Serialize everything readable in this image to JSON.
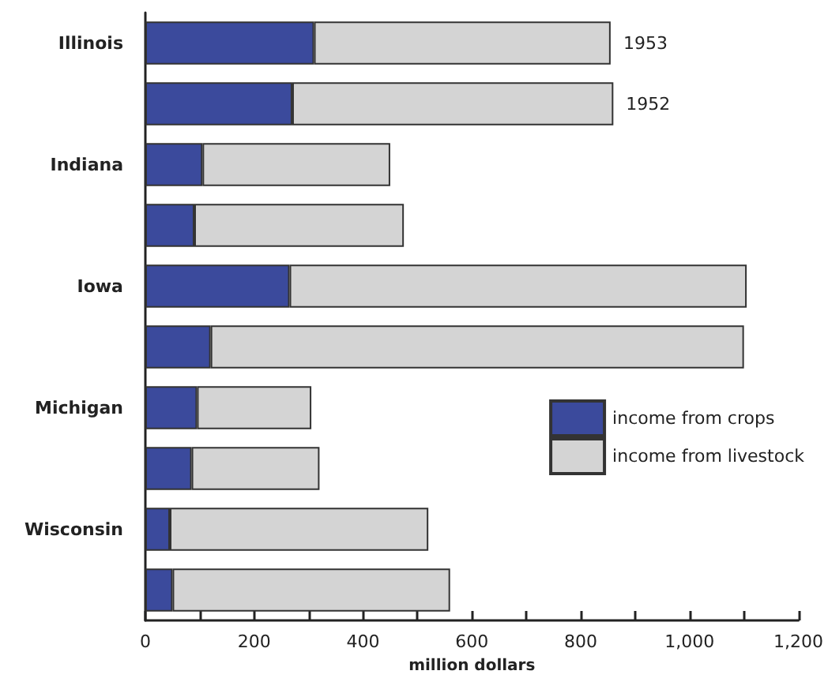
{
  "chart_data": {
    "type": "bar",
    "orientation": "horizontal",
    "stacked": true,
    "xlabel": "million dollars",
    "categories": [
      "Illinois",
      null,
      "Indiana",
      null,
      "Iowa",
      null,
      "Michigan",
      null,
      "Wisconsin",
      null
    ],
    "series": [
      {
        "name": "income from crops",
        "color": "#3b4a9c",
        "values": [
          310,
          270,
          105,
          90,
          265,
          120,
          95,
          85,
          45,
          50
        ]
      },
      {
        "name": "income from livestock",
        "color": "#d4d4d4",
        "values": [
          545,
          590,
          345,
          385,
          840,
          980,
          210,
          235,
          475,
          510
        ]
      }
    ],
    "annotations": [
      "1953",
      "1952"
    ],
    "xlim": [
      0,
      1200
    ],
    "xticks": [
      0,
      {
        "value": 100,
        "label": null
      },
      200,
      {
        "value": 300,
        "label": null
      },
      400,
      {
        "value": 500,
        "label": null
      },
      600,
      {
        "value": 700,
        "label": null
      },
      800,
      {
        "value": 900,
        "label": null
      },
      {
        "value": 1000,
        "label": "1,000"
      },
      {
        "value": 1100,
        "label": null
      },
      {
        "value": 1200,
        "label": "1,200"
      }
    ],
    "grid": false,
    "legend": "right"
  }
}
